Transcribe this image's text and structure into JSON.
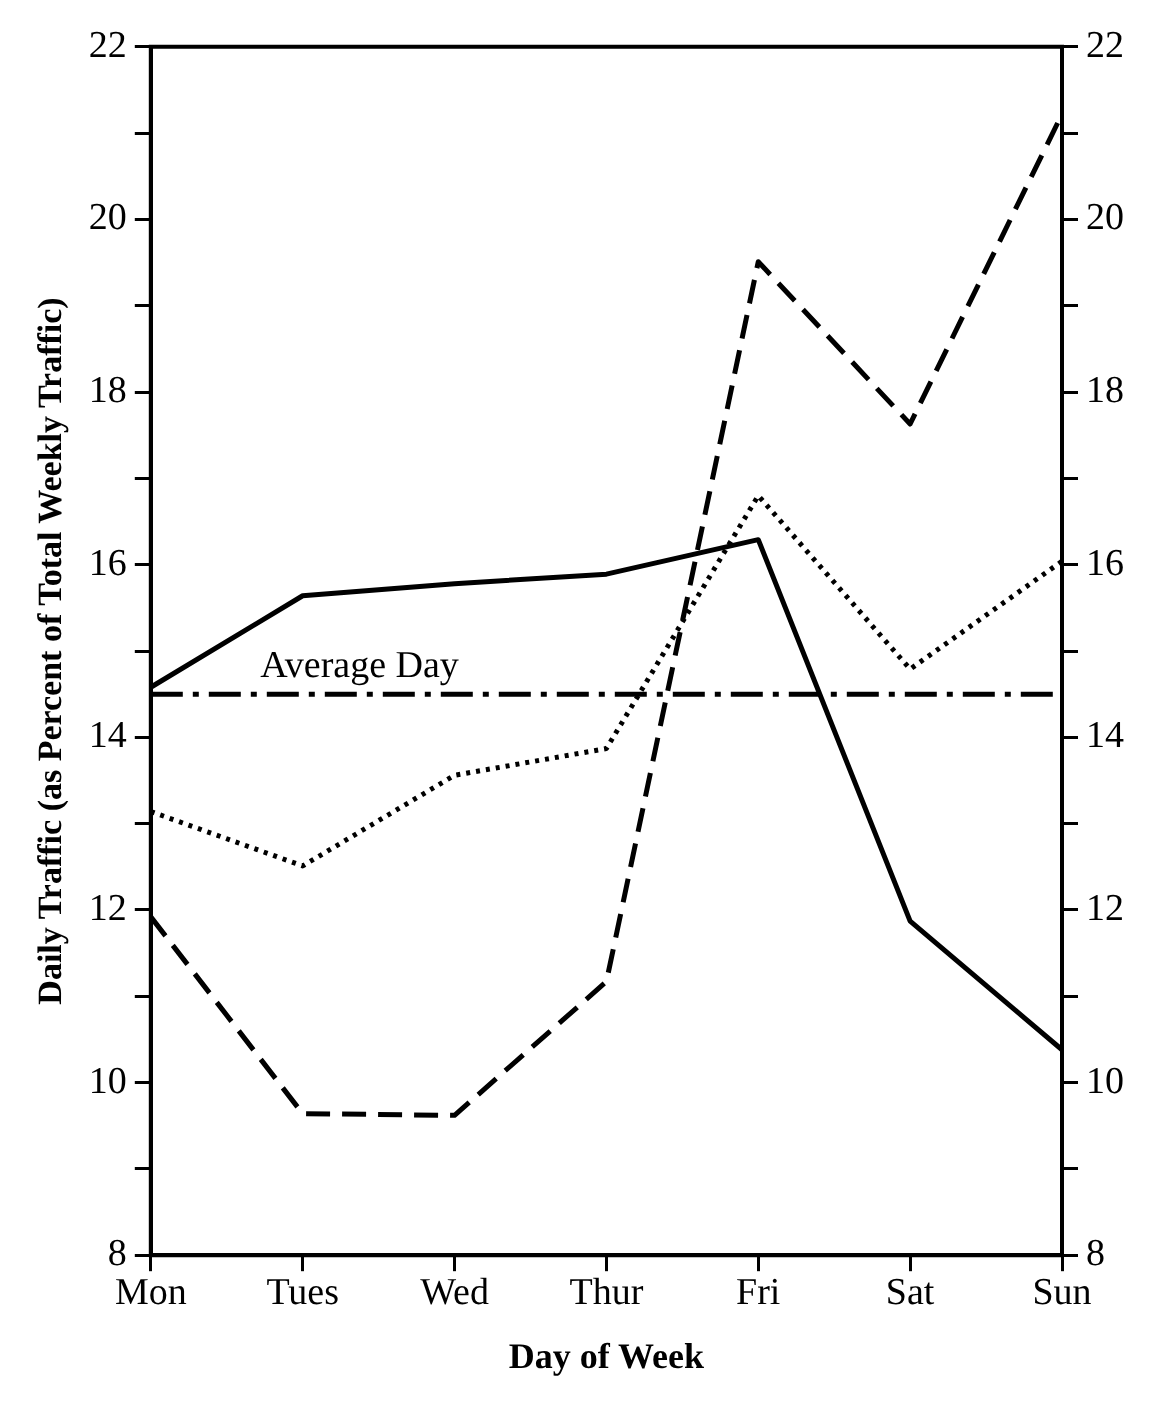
{
  "chart_data": {
    "type": "line",
    "xlabel": "Day of Week",
    "ylabel": "Daily Traffic (as Percent of Total Weekly Traffic)",
    "categories": [
      "Mon",
      "Tues",
      "Wed",
      "Thur",
      "Fri",
      "Sat",
      "Sun"
    ],
    "series": [
      {
        "color": "#000000",
        "line_style": "solid",
        "values": [
          14.58,
          15.64,
          15.78,
          15.89,
          16.29,
          11.87,
          10.38
        ]
      },
      {
        "color": "#000000",
        "line_style": "dotted",
        "values": [
          13.14,
          12.51,
          13.56,
          13.87,
          16.8,
          14.79,
          16.04
        ]
      },
      {
        "color": "#000000",
        "line_style": "dashed",
        "values": [
          11.92,
          9.64,
          9.62,
          11.17,
          19.51,
          17.63,
          21.22
        ]
      }
    ],
    "ylim": [
      8,
      22
    ],
    "yticks": [
      8,
      {
        "value": 9,
        "label": null
      },
      10,
      {
        "value": 11,
        "label": null
      },
      12,
      {
        "value": 13,
        "label": null
      },
      14,
      {
        "value": 15,
        "label": null
      },
      16,
      {
        "value": 17,
        "label": null
      },
      18,
      {
        "value": 19,
        "label": null
      },
      20,
      {
        "value": 21,
        "label": null
      },
      22
    ],
    "y2lim": [
      8,
      22
    ],
    "y2ticks": [
      8,
      {
        "value": 9,
        "label": null
      },
      10,
      {
        "value": 11,
        "label": null
      },
      12,
      {
        "value": 13,
        "label": null
      },
      14,
      {
        "value": 15,
        "label": null
      },
      16,
      {
        "value": 17,
        "label": null
      },
      18,
      {
        "value": 19,
        "label": null
      },
      20,
      {
        "value": 21,
        "label": null
      },
      22
    ],
    "ref_lines": [
      {
        "axis": "y",
        "value": 14.5,
        "label": "Average Day",
        "color": "#000000",
        "line_style": "dashed"
      }
    ],
    "grid": false,
    "legend": false,
    "marker": "none"
  }
}
